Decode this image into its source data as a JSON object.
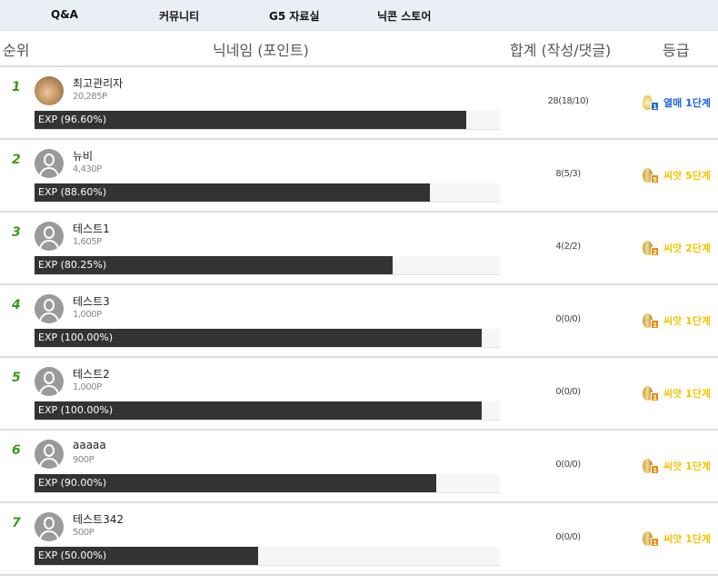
{
  "nav": [
    "Q&A",
    "커뮤니티",
    "G5 자료실",
    "닉콘 스토어"
  ],
  "headers": {
    "rank": "순위",
    "nickname": "닉네임 (포인트)",
    "total": "합계 (작성/댓글)",
    "grade": "등급"
  },
  "colors": {
    "rank": "#3a9a1a",
    "grade_fruit": "#1a66e0",
    "grade_seed": "#f2c500",
    "bar": "#333333"
  },
  "rows": [
    {
      "rank": "1",
      "name": "최고관리자",
      "points": "20,285P",
      "exp": "EXP (96.60%)",
      "exp_pct": 96.6,
      "total": "28(18/10)",
      "grade": "열매 1단계",
      "grade_type": "fruit",
      "level": "1",
      "avatar": "photo"
    },
    {
      "rank": "2",
      "name": "뉴비",
      "points": "4,430P",
      "exp": "EXP (88.60%)",
      "exp_pct": 88.6,
      "total": "8(5/3)",
      "grade": "씨앗 5단계",
      "grade_type": "seed",
      "level": "5",
      "avatar": "default"
    },
    {
      "rank": "3",
      "name": "테스트1",
      "points": "1,605P",
      "exp": "EXP (80.25%)",
      "exp_pct": 80.25,
      "total": "4(2/2)",
      "grade": "씨앗 2단계",
      "grade_type": "seed",
      "level": "2",
      "avatar": "default"
    },
    {
      "rank": "4",
      "name": "테스트3",
      "points": "1,000P",
      "exp": "EXP (100.00%)",
      "exp_pct": 100,
      "total": "0(0/0)",
      "grade": "씨앗 1단계",
      "grade_type": "seed",
      "level": "1",
      "avatar": "default"
    },
    {
      "rank": "5",
      "name": "테스트2",
      "points": "1,000P",
      "exp": "EXP (100.00%)",
      "exp_pct": 100,
      "total": "0(0/0)",
      "grade": "씨앗 1단계",
      "grade_type": "seed",
      "level": "1",
      "avatar": "default"
    },
    {
      "rank": "6",
      "name": "aaaaa",
      "points": "900P",
      "exp": "EXP (90.00%)",
      "exp_pct": 90,
      "total": "0(0/0)",
      "grade": "씨앗 1단계",
      "grade_type": "seed",
      "level": "1",
      "avatar": "default"
    },
    {
      "rank": "7",
      "name": "테스트342",
      "points": "500P",
      "exp": "EXP (50.00%)",
      "exp_pct": 50,
      "total": "0(0/0)",
      "grade": "씨앗 1단계",
      "grade_type": "seed",
      "level": "1",
      "avatar": "default"
    }
  ]
}
